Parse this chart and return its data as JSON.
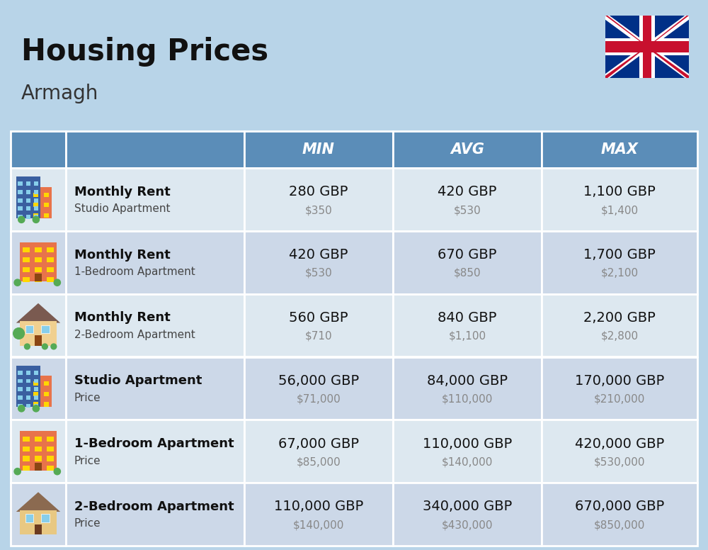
{
  "title": "Housing Prices",
  "subtitle": "Armagh",
  "background_color": "#b8d4e8",
  "header_bg_color": "#5b8db8",
  "header_text_color": "#ffffff",
  "row_colors": [
    "#dde8f0",
    "#ccd8e8"
  ],
  "col_labels": [
    "MIN",
    "AVG",
    "MAX"
  ],
  "rows": [
    {
      "bold_label": "Monthly Rent",
      "sub_label": "Studio Apartment",
      "min_gbp": "280 GBP",
      "min_usd": "$350",
      "avg_gbp": "420 GBP",
      "avg_usd": "$530",
      "max_gbp": "1,100 GBP",
      "max_usd": "$1,400",
      "icon_type": "studio_blue"
    },
    {
      "bold_label": "Monthly Rent",
      "sub_label": "1-Bedroom Apartment",
      "min_gbp": "420 GBP",
      "min_usd": "$530",
      "avg_gbp": "670 GBP",
      "avg_usd": "$850",
      "max_gbp": "1,700 GBP",
      "max_usd": "$2,100",
      "icon_type": "apartment_orange"
    },
    {
      "bold_label": "Monthly Rent",
      "sub_label": "2-Bedroom Apartment",
      "min_gbp": "560 GBP",
      "min_usd": "$710",
      "avg_gbp": "840 GBP",
      "avg_usd": "$1,100",
      "max_gbp": "2,200 GBP",
      "max_usd": "$2,800",
      "icon_type": "house_beige"
    },
    {
      "bold_label": "Studio Apartment",
      "sub_label": "Price",
      "min_gbp": "56,000 GBP",
      "min_usd": "$71,000",
      "avg_gbp": "84,000 GBP",
      "avg_usd": "$110,000",
      "max_gbp": "170,000 GBP",
      "max_usd": "$210,000",
      "icon_type": "studio_blue"
    },
    {
      "bold_label": "1-Bedroom Apartment",
      "sub_label": "Price",
      "min_gbp": "67,000 GBP",
      "min_usd": "$85,000",
      "avg_gbp": "110,000 GBP",
      "avg_usd": "$140,000",
      "max_gbp": "420,000 GBP",
      "max_usd": "$530,000",
      "icon_type": "apartment_orange"
    },
    {
      "bold_label": "2-Bedroom Apartment",
      "sub_label": "Price",
      "min_gbp": "110,000 GBP",
      "min_usd": "$140,000",
      "avg_gbp": "340,000 GBP",
      "avg_usd": "$430,000",
      "max_gbp": "670,000 GBP",
      "max_usd": "$850,000",
      "icon_type": "house_brown"
    }
  ],
  "title_fontsize": 30,
  "subtitle_fontsize": 20,
  "header_fontsize": 15,
  "cell_fontsize": 14,
  "cell_sub_fontsize": 11,
  "label_fontsize": 13,
  "label_sub_fontsize": 11,
  "fig_width": 10.0,
  "fig_height": 7.76,
  "dpi": 100
}
